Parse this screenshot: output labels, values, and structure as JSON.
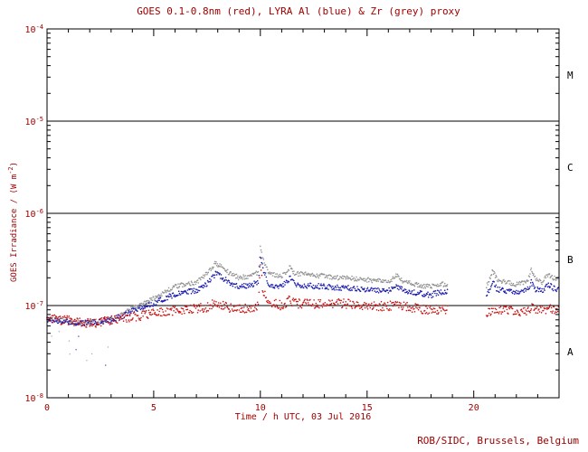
{
  "footer": "ROB/SIDC, Brussels, Belgium",
  "colors": {
    "annotation_text": "#a00000",
    "axis": "#000000",
    "goes_red": "#cc1111",
    "lyra_al_blue": "#1a1aae",
    "lyra_zr_grey": "#949494"
  },
  "chart_data": {
    "type": "scatter",
    "title": "GOES 0.1-0.8nm (red), LYRA Al (blue) & Zr (grey) proxy",
    "xlabel": "Time / h UTC, 03 Jul 2016",
    "ylabel": {
      "prefix": "GOES Irradiance / (W m",
      "sup": "-2",
      "suffix": ")"
    },
    "x_range": [
      0,
      24
    ],
    "x_major_ticks": [
      0,
      5,
      10,
      15,
      20
    ],
    "x_minor_step": 1,
    "y_scale": "log",
    "y_log_range": [
      -8,
      -4
    ],
    "y_tick_exponents": [
      -8,
      -7,
      -6,
      -5,
      -4
    ],
    "hlines": [
      1e-05,
      1e-06,
      1e-07
    ],
    "flare_classes": [
      {
        "label": "M",
        "value": 3.16e-05
      },
      {
        "label": "C",
        "value": 3.16e-06
      },
      {
        "label": "B",
        "value": 3.16e-07
      },
      {
        "label": "A",
        "value": 3.16e-08
      }
    ],
    "grid": false,
    "legend": "in title (colors)",
    "data_gap_hours": [
      18.8,
      20.6
    ],
    "series": [
      {
        "id": "lyra-zr",
        "name": "LYRA Zr proxy (grey)",
        "color": "#949494",
        "jitter_log": 0.025,
        "early_scatter": true,
        "segments": [
          [
            [
              0,
              7.2e-08
            ],
            [
              0.5,
              7e-08
            ],
            [
              1,
              6.8e-08
            ],
            [
              1.5,
              6.5e-08
            ],
            [
              2,
              6.6e-08
            ],
            [
              2.5,
              6.8e-08
            ],
            [
              3,
              7.2e-08
            ],
            [
              3.5,
              8e-08
            ],
            [
              4,
              9.5e-08
            ],
            [
              4.5,
              1.05e-07
            ],
            [
              5,
              1.2e-07
            ],
            [
              5.5,
              1.4e-07
            ],
            [
              6,
              1.6e-07
            ],
            [
              6.5,
              1.7e-07
            ],
            [
              7,
              1.8e-07
            ],
            [
              7.5,
              2.2e-07
            ],
            [
              7.9,
              2.9e-07
            ],
            [
              8.1,
              2.7e-07
            ],
            [
              8.5,
              2.3e-07
            ],
            [
              9,
              2e-07
            ],
            [
              9.5,
              2.1e-07
            ],
            [
              9.9,
              2.3e-07
            ],
            [
              10.0,
              4.2e-07
            ],
            [
              10.15,
              3e-07
            ],
            [
              10.4,
              2.2e-07
            ],
            [
              11,
              2.1e-07
            ],
            [
              11.4,
              2.6e-07
            ],
            [
              11.6,
              2.2e-07
            ],
            [
              12,
              2.2e-07
            ],
            [
              12.5,
              2.1e-07
            ],
            [
              13,
              2.1e-07
            ],
            [
              13.5,
              2e-07
            ],
            [
              14,
              2e-07
            ],
            [
              14.5,
              1.95e-07
            ],
            [
              15,
              1.9e-07
            ],
            [
              15.5,
              1.85e-07
            ],
            [
              16,
              1.8e-07
            ],
            [
              16.4,
              2.1e-07
            ],
            [
              16.7,
              1.8e-07
            ],
            [
              17,
              1.75e-07
            ],
            [
              17.5,
              1.65e-07
            ],
            [
              18,
              1.6e-07
            ],
            [
              18.4,
              1.7e-07
            ],
            [
              18.8,
              1.7e-07
            ]
          ],
          [
            [
              20.6,
              1.6e-07
            ],
            [
              20.9,
              2.4e-07
            ],
            [
              21.1,
              1.9e-07
            ],
            [
              21.5,
              1.8e-07
            ],
            [
              22,
              1.7e-07
            ],
            [
              22.5,
              1.8e-07
            ],
            [
              22.7,
              2.4e-07
            ],
            [
              22.9,
              1.9e-07
            ],
            [
              23.2,
              1.8e-07
            ],
            [
              23.5,
              2.2e-07
            ],
            [
              23.7,
              2e-07
            ],
            [
              24,
              1.9e-07
            ]
          ]
        ]
      },
      {
        "id": "lyra-al",
        "name": "LYRA Al proxy (blue)",
        "color": "#1a1aae",
        "jitter_log": 0.03,
        "early_scatter": true,
        "segments": [
          [
            [
              0,
              7e-08
            ],
            [
              0.5,
              6.9e-08
            ],
            [
              1,
              6.7e-08
            ],
            [
              1.5,
              6.4e-08
            ],
            [
              2,
              6.5e-08
            ],
            [
              2.5,
              6.7e-08
            ],
            [
              3,
              7e-08
            ],
            [
              3.5,
              7.6e-08
            ],
            [
              4,
              8.8e-08
            ],
            [
              4.5,
              9.6e-08
            ],
            [
              5,
              1.05e-07
            ],
            [
              5.5,
              1.2e-07
            ],
            [
              6,
              1.3e-07
            ],
            [
              6.5,
              1.4e-07
            ],
            [
              7,
              1.45e-07
            ],
            [
              7.5,
              1.7e-07
            ],
            [
              7.9,
              2.2e-07
            ],
            [
              8.1,
              2.1e-07
            ],
            [
              8.5,
              1.8e-07
            ],
            [
              9,
              1.6e-07
            ],
            [
              9.5,
              1.65e-07
            ],
            [
              9.9,
              1.8e-07
            ],
            [
              10.0,
              3.4e-07
            ],
            [
              10.15,
              2.4e-07
            ],
            [
              10.4,
              1.7e-07
            ],
            [
              11,
              1.6e-07
            ],
            [
              11.4,
              2e-07
            ],
            [
              11.6,
              1.7e-07
            ],
            [
              12,
              1.65e-07
            ],
            [
              13,
              1.6e-07
            ],
            [
              14,
              1.55e-07
            ],
            [
              15,
              1.5e-07
            ],
            [
              16,
              1.45e-07
            ],
            [
              16.4,
              1.6e-07
            ],
            [
              17,
              1.4e-07
            ],
            [
              17.5,
              1.35e-07
            ],
            [
              18,
              1.3e-07
            ],
            [
              18.4,
              1.4e-07
            ],
            [
              18.8,
              1.4e-07
            ]
          ],
          [
            [
              20.6,
              1.3e-07
            ],
            [
              20.9,
              1.8e-07
            ],
            [
              21.1,
              1.5e-07
            ],
            [
              21.5,
              1.45e-07
            ],
            [
              22,
              1.4e-07
            ],
            [
              22.5,
              1.45e-07
            ],
            [
              22.7,
              1.8e-07
            ],
            [
              22.9,
              1.5e-07
            ],
            [
              23.2,
              1.45e-07
            ],
            [
              23.5,
              1.7e-07
            ],
            [
              23.7,
              1.55e-07
            ],
            [
              24,
              1.5e-07
            ]
          ]
        ]
      },
      {
        "id": "goes",
        "name": "GOES 0.1-0.8nm (red)",
        "color": "#cc1111",
        "jitter_log": 0.05,
        "early_scatter": false,
        "segments": [
          [
            [
              0,
              7.2e-08
            ],
            [
              0.5,
              7e-08
            ],
            [
              1,
              6.9e-08
            ],
            [
              1.5,
              6.6e-08
            ],
            [
              2,
              6.4e-08
            ],
            [
              2.5,
              6.6e-08
            ],
            [
              3,
              7e-08
            ],
            [
              3.5,
              7.2e-08
            ],
            [
              4,
              7.5e-08
            ],
            [
              4.5,
              7.8e-08
            ],
            [
              5,
              8.2e-08
            ],
            [
              5.5,
              8.5e-08
            ],
            [
              6,
              8.8e-08
            ],
            [
              6.5,
              9e-08
            ],
            [
              7,
              9.2e-08
            ],
            [
              7.5,
              9.6e-08
            ],
            [
              7.9,
              1.1e-07
            ],
            [
              8.1,
              1.05e-07
            ],
            [
              8.5,
              9.5e-08
            ],
            [
              9,
              9.2e-08
            ],
            [
              9.5,
              9.5e-08
            ],
            [
              9.9,
              1e-07
            ],
            [
              10.0,
              2.8e-07
            ],
            [
              10.1,
              1.6e-07
            ],
            [
              10.3,
              1.1e-07
            ],
            [
              11,
              1e-07
            ],
            [
              11.4,
              1.15e-07
            ],
            [
              11.6,
              1.05e-07
            ],
            [
              12,
              1.05e-07
            ],
            [
              13,
              1.05e-07
            ],
            [
              14,
              1.05e-07
            ],
            [
              15,
              1e-07
            ],
            [
              16,
              9.8e-08
            ],
            [
              16.4,
              1.05e-07
            ],
            [
              17,
              9.5e-08
            ],
            [
              17.5,
              9.2e-08
            ],
            [
              18,
              9e-08
            ],
            [
              18.8,
              9e-08
            ]
          ],
          [
            [
              20.6,
              8.5e-08
            ],
            [
              21,
              9e-08
            ],
            [
              21.5,
              8.8e-08
            ],
            [
              22,
              8.6e-08
            ],
            [
              22.5,
              8.8e-08
            ],
            [
              22.7,
              9.5e-08
            ],
            [
              23,
              8.8e-08
            ],
            [
              23.5,
              9.2e-08
            ],
            [
              24,
              9e-08
            ]
          ]
        ]
      }
    ]
  }
}
